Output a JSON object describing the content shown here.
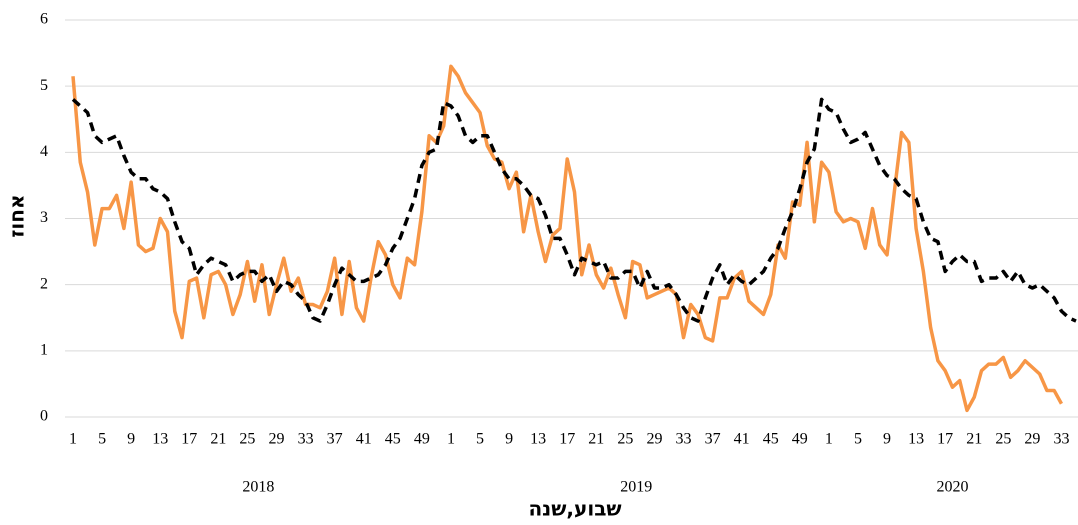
{
  "chart_data": {
    "type": "line",
    "ylabel": "אחוז",
    "xlabel": "שבוע,שנה",
    "groups": [
      "2018",
      "2019",
      "2020"
    ],
    "categories": [
      1,
      null,
      null,
      null,
      5,
      null,
      null,
      null,
      9,
      null,
      null,
      null,
      13,
      null,
      null,
      null,
      17,
      null,
      null,
      null,
      21,
      null,
      null,
      null,
      25,
      null,
      null,
      null,
      29,
      null,
      null,
      null,
      33,
      null,
      null,
      null,
      37,
      null,
      null,
      null,
      41,
      null,
      null,
      null,
      45,
      null,
      null,
      null,
      49,
      null,
      null,
      null,
      1,
      null,
      null,
      null,
      5,
      null,
      null,
      null,
      9,
      null,
      null,
      null,
      13,
      null,
      null,
      null,
      17,
      null,
      null,
      null,
      21,
      null,
      null,
      null,
      25,
      null,
      null,
      null,
      29,
      null,
      null,
      null,
      33,
      null,
      null,
      null,
      37,
      null,
      null,
      null,
      41,
      null,
      null,
      null,
      45,
      null,
      null,
      null,
      49,
      null,
      null,
      null,
      1,
      null,
      null,
      null,
      5,
      null,
      null,
      null,
      9,
      null,
      null,
      null,
      13,
      null,
      null,
      null,
      17,
      null,
      null,
      null,
      21,
      null,
      null,
      null,
      25,
      null,
      null,
      null,
      29,
      null,
      null,
      null,
      33,
      null,
      null
    ],
    "ylim": [
      0,
      6
    ],
    "yticks": [
      0,
      1,
      2,
      3,
      4,
      5,
      6
    ],
    "grid": true,
    "series": [
      {
        "color": "#f79646",
        "dash": false,
        "values": [
          5.15,
          3.85,
          3.4,
          2.6,
          3.15,
          3.15,
          3.35,
          2.85,
          3.55,
          2.6,
          2.5,
          2.55,
          3.0,
          2.8,
          1.6,
          1.2,
          2.05,
          2.1,
          1.5,
          2.15,
          2.2,
          2.0,
          1.55,
          1.85,
          2.35,
          1.75,
          2.3,
          1.55,
          2.0,
          2.4,
          1.9,
          2.1,
          1.7,
          1.7,
          1.65,
          1.9,
          2.4,
          1.55,
          2.35,
          1.65,
          1.45,
          2.1,
          2.65,
          2.45,
          2.0,
          1.8,
          2.4,
          2.3,
          3.1,
          4.25,
          4.15,
          4.4,
          5.3,
          5.15,
          4.9,
          4.75,
          4.6,
          4.1,
          3.9,
          3.85,
          3.45,
          3.7,
          2.8,
          3.35,
          2.8,
          2.35,
          2.75,
          2.85,
          3.9,
          3.4,
          2.15,
          2.6,
          2.15,
          1.95,
          2.25,
          1.85,
          1.5,
          2.35,
          2.3,
          1.8,
          1.85,
          1.9,
          1.95,
          1.85,
          1.2,
          1.7,
          1.55,
          1.2,
          1.15,
          1.8,
          1.8,
          2.1,
          2.2,
          1.75,
          1.65,
          1.55,
          1.85,
          2.6,
          2.4,
          3.25,
          3.2,
          4.15,
          2.95,
          3.85,
          3.7,
          3.1,
          2.95,
          3.0,
          2.95,
          2.55,
          3.15,
          2.6,
          2.45,
          3.4,
          4.3,
          4.15,
          2.85,
          2.2,
          1.35,
          0.85,
          0.7,
          0.45,
          0.55,
          0.1,
          0.3,
          0.7,
          0.8,
          0.8,
          0.9,
          0.6,
          0.7,
          0.85,
          0.75,
          0.65,
          0.4,
          0.4,
          0.2,
          null,
          null
        ]
      },
      {
        "color": "#000000",
        "dash": true,
        "values": [
          4.8,
          4.7,
          4.6,
          4.25,
          4.15,
          4.2,
          4.25,
          3.95,
          3.7,
          3.6,
          3.6,
          3.45,
          3.4,
          3.3,
          2.95,
          2.65,
          2.55,
          2.15,
          2.3,
          2.4,
          2.35,
          2.3,
          2.05,
          2.15,
          2.2,
          2.2,
          2.05,
          2.15,
          1.9,
          2.05,
          2.0,
          1.85,
          1.75,
          1.5,
          1.45,
          1.7,
          2.0,
          2.25,
          2.15,
          2.05,
          2.05,
          2.1,
          2.15,
          2.3,
          2.55,
          2.7,
          3.0,
          3.3,
          3.8,
          4.0,
          4.05,
          4.75,
          4.7,
          4.55,
          4.25,
          4.15,
          4.25,
          4.25,
          4.0,
          3.75,
          3.6,
          3.6,
          3.5,
          3.35,
          3.3,
          3.05,
          2.7,
          2.7,
          2.45,
          2.15,
          2.4,
          2.35,
          2.3,
          2.35,
          2.1,
          2.1,
          2.2,
          2.2,
          1.95,
          2.2,
          1.95,
          1.95,
          2.0,
          1.85,
          1.65,
          1.5,
          1.45,
          1.8,
          2.1,
          2.3,
          2.0,
          2.15,
          2.05,
          2.0,
          2.1,
          2.2,
          2.4,
          2.55,
          2.85,
          3.1,
          3.45,
          3.85,
          4.05,
          4.8,
          4.65,
          4.6,
          4.35,
          4.15,
          4.2,
          4.3,
          4.05,
          3.8,
          3.65,
          3.6,
          3.45,
          3.35,
          3.3,
          2.95,
          2.7,
          2.65,
          2.2,
          2.35,
          2.45,
          2.35,
          2.35,
          2.05,
          2.1,
          2.1,
          2.2,
          2.05,
          2.2,
          2.0,
          1.95,
          2.0,
          1.9,
          1.8,
          1.6,
          1.5,
          1.45
        ]
      }
    ]
  }
}
